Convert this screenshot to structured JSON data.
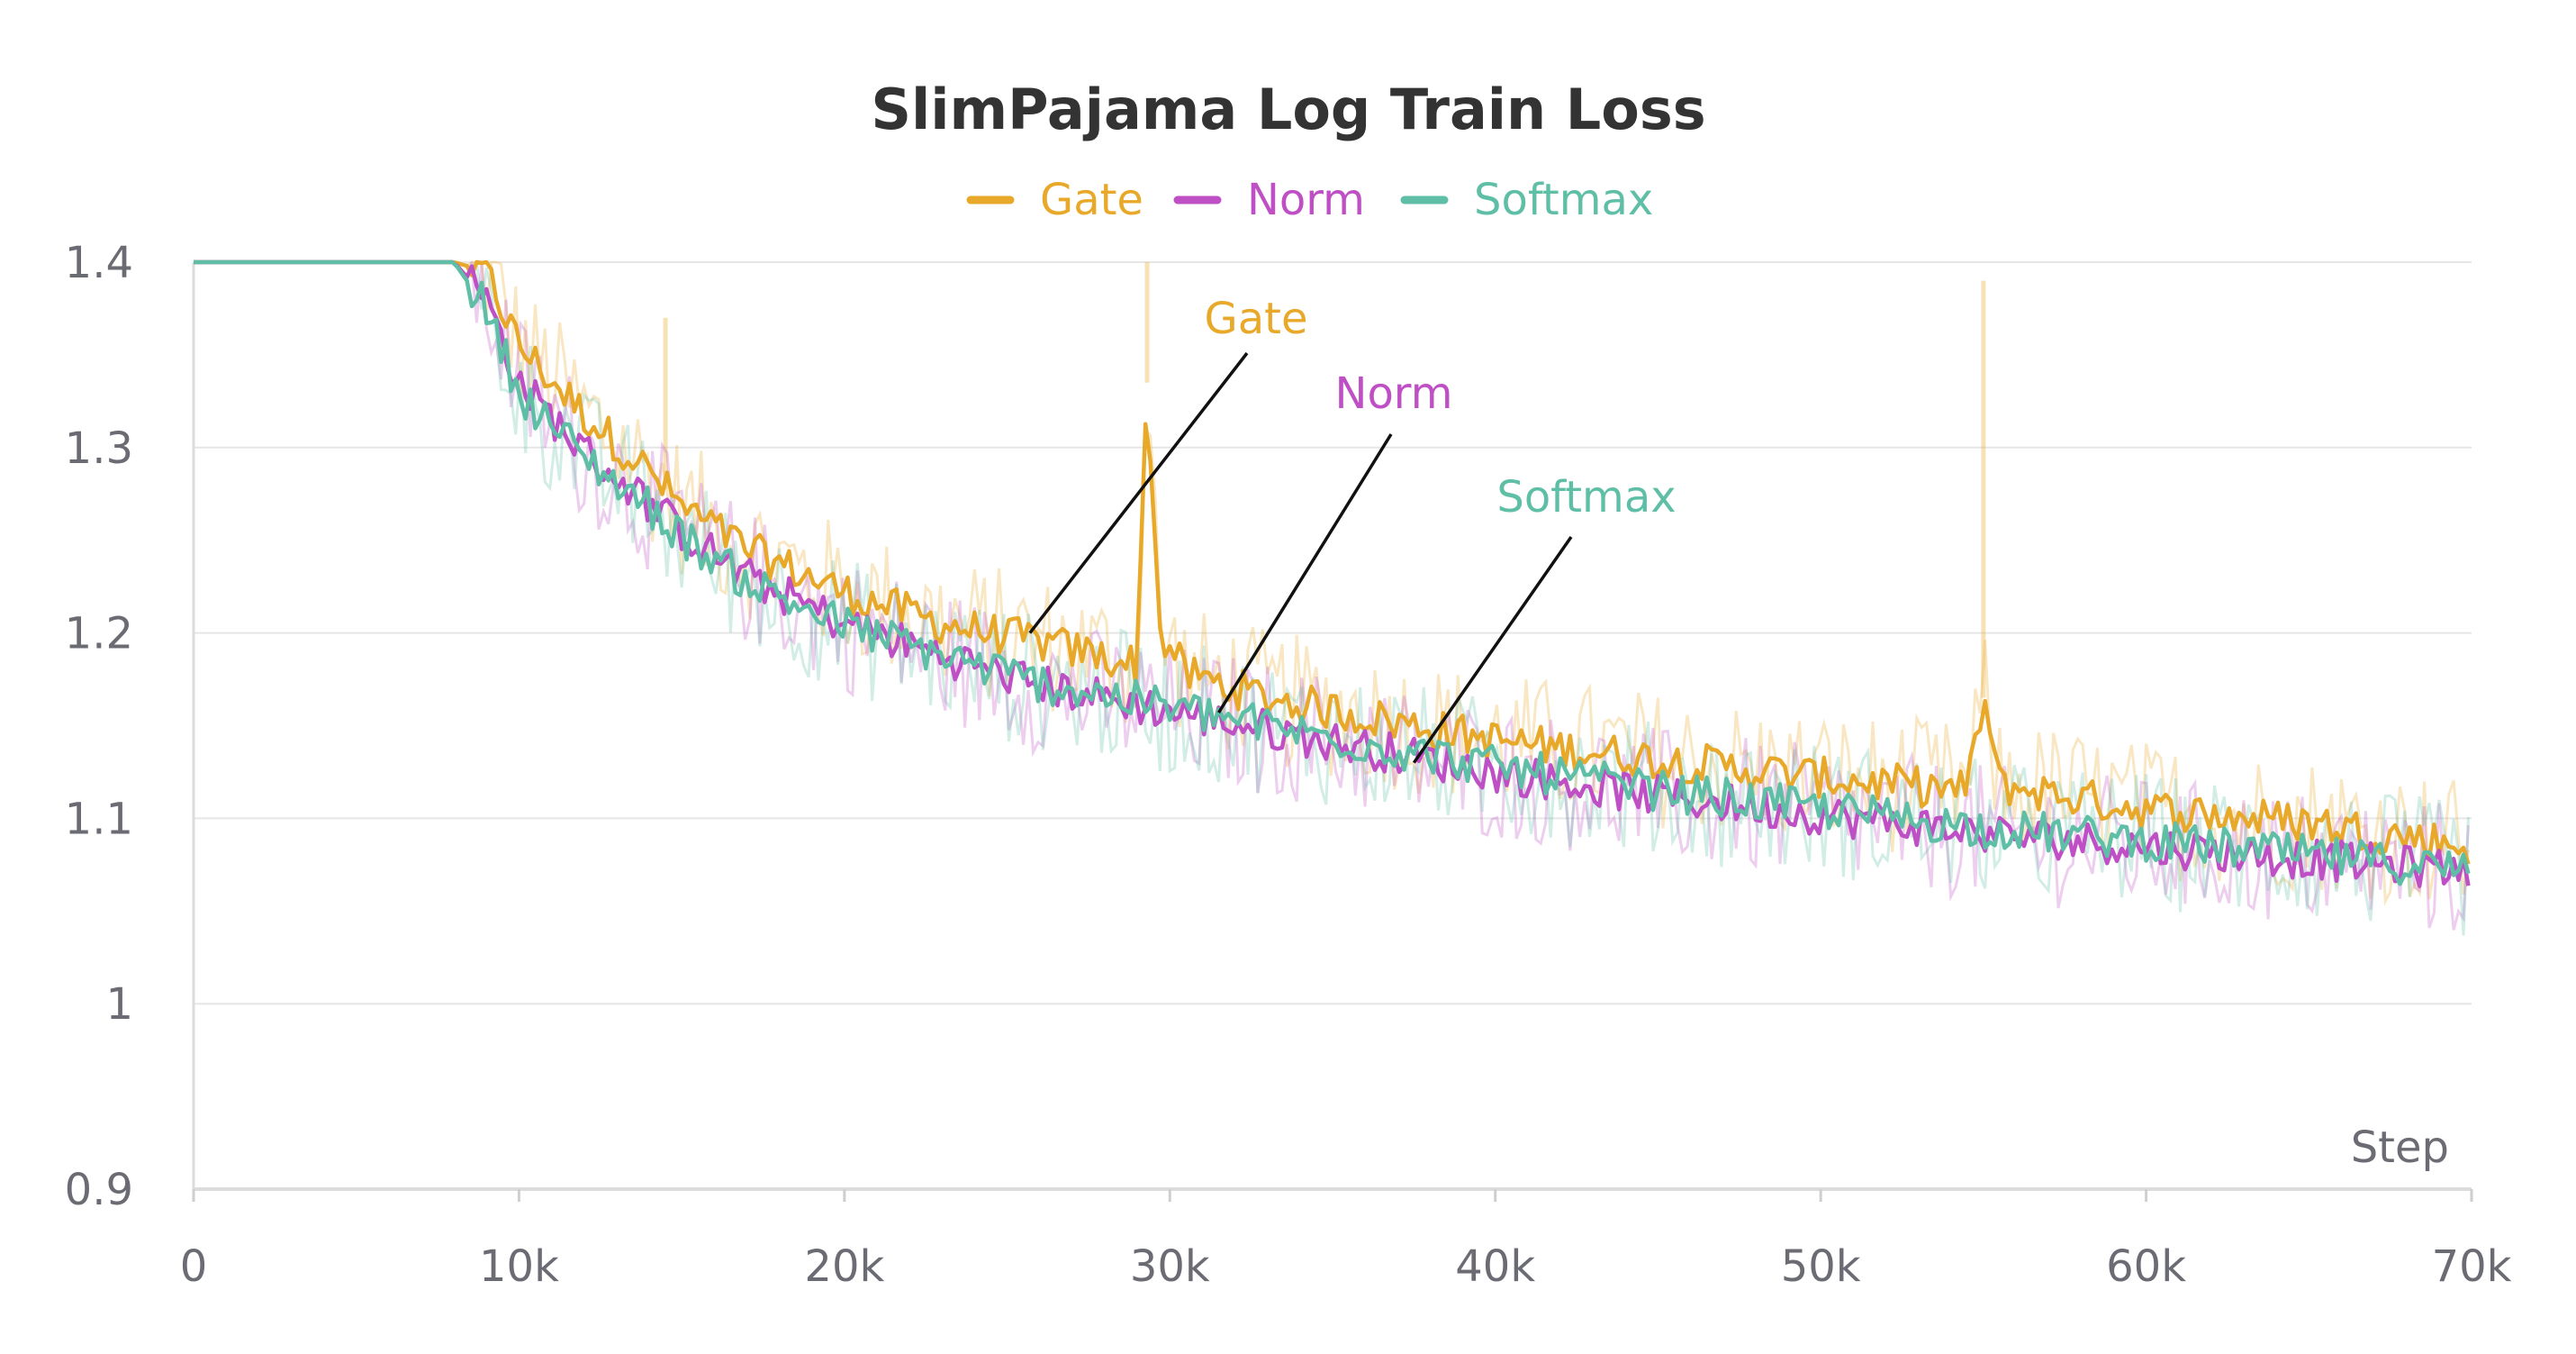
{
  "chart_data": {
    "type": "line",
    "title": "SlimPajama Log Train Loss",
    "xlabel": "Step",
    "ylabel": "",
    "xlim": [
      0,
      70000
    ],
    "ylim": [
      0.9,
      1.4
    ],
    "x_ticks": [
      0,
      10000,
      20000,
      30000,
      40000,
      50000,
      60000,
      70000
    ],
    "x_tick_labels": [
      "0",
      "10k",
      "20k",
      "30k",
      "40k",
      "50k",
      "60k",
      "70k"
    ],
    "y_ticks": [
      0.9,
      1.0,
      1.1,
      1.2,
      1.3,
      1.4
    ],
    "y_tick_labels": [
      "0.9",
      "1",
      "1.1",
      "1.2",
      "1.3",
      "1.4"
    ],
    "grid": true,
    "legend": "top-center",
    "series": [
      {
        "name": "Gate",
        "color": "#e8a92a",
        "x": [
          0,
          300,
          2000,
          5000,
          8000,
          9000,
          10000,
          12000,
          14000,
          15000,
          17000,
          20000,
          23000,
          26000,
          29000,
          29300,
          29700,
          30500,
          33000,
          36000,
          40000,
          45000,
          50000,
          54500,
          55000,
          55500,
          60000,
          65000,
          70000
        ],
        "values": [
          1.4,
          1.4,
          1.4,
          1.4,
          1.4,
          1.395,
          1.355,
          1.318,
          1.287,
          1.268,
          1.245,
          1.222,
          1.205,
          1.195,
          1.183,
          1.335,
          1.2,
          1.178,
          1.165,
          1.155,
          1.142,
          1.132,
          1.122,
          1.115,
          1.165,
          1.118,
          1.105,
          1.098,
          1.085
        ],
        "spikes": [
          {
            "x": 14500,
            "peak": 1.37
          },
          {
            "x": 29300,
            "peak": 1.4
          },
          {
            "x": 55000,
            "peak": 1.39
          }
        ]
      },
      {
        "name": "Norm",
        "color": "#bf4fc4",
        "x": [
          0,
          300,
          2000,
          5000,
          8000,
          9000,
          10000,
          12000,
          14000,
          15000,
          17000,
          20000,
          23000,
          26000,
          30000,
          33000,
          36000,
          40000,
          45000,
          50000,
          55000,
          60000,
          65000,
          70000
        ],
        "values": [
          1.4,
          1.4,
          1.4,
          1.4,
          1.4,
          1.38,
          1.335,
          1.298,
          1.27,
          1.255,
          1.23,
          1.205,
          1.188,
          1.172,
          1.158,
          1.148,
          1.138,
          1.125,
          1.112,
          1.102,
          1.092,
          1.085,
          1.078,
          1.072
        ],
        "spikes": []
      },
      {
        "name": "Softmax",
        "color": "#5fbfa6",
        "x": [
          0,
          300,
          2000,
          5000,
          8000,
          9000,
          10000,
          12000,
          14000,
          15000,
          17000,
          20000,
          23000,
          26000,
          30000,
          33000,
          36000,
          40000,
          45000,
          50000,
          55000,
          60000,
          65000,
          70000
        ],
        "values": [
          1.4,
          1.4,
          1.4,
          1.4,
          1.4,
          1.375,
          1.33,
          1.295,
          1.268,
          1.252,
          1.228,
          1.204,
          1.188,
          1.173,
          1.16,
          1.15,
          1.14,
          1.128,
          1.115,
          1.105,
          1.095,
          1.088,
          1.08,
          1.072
        ],
        "spikes": []
      }
    ],
    "annotations": [
      {
        "text": "Gate",
        "series": "Gate",
        "target_x": 25700,
        "target_y": 1.2
      },
      {
        "text": "Norm",
        "series": "Norm",
        "target_x": 31500,
        "target_y": 1.157
      },
      {
        "text": "Softmax",
        "series": "Softmax",
        "target_x": 37500,
        "target_y": 1.13
      }
    ]
  }
}
